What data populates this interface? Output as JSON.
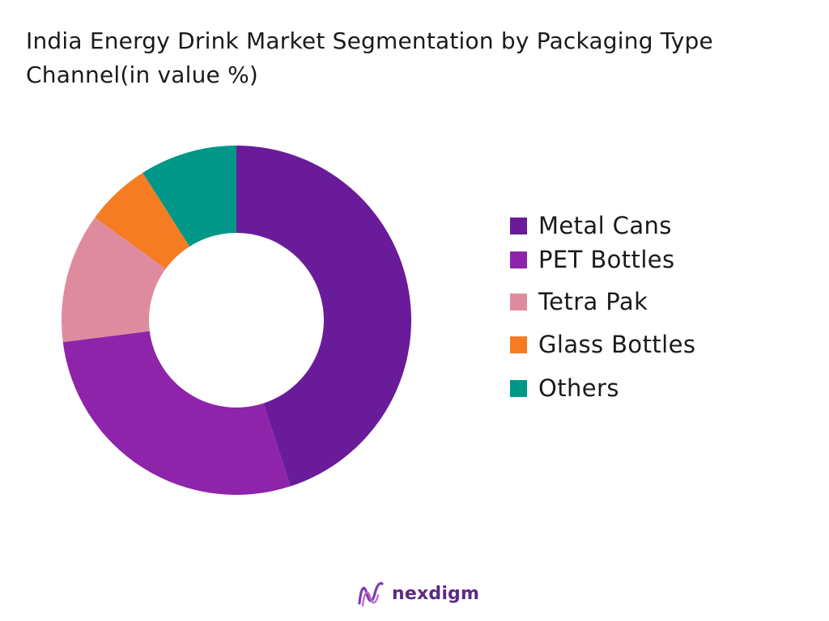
{
  "title_lines": [
    "India Energy Drink Market Segmentation by Packaging Type",
    "Channel(in value %)"
  ],
  "chart_data": {
    "type": "pie",
    "title": "India Energy Drink Market Segmentation by Packaging Type Channel(in value %)",
    "donut": true,
    "categories": [
      "Metal Cans",
      "PET Bottles",
      "Tetra Pak",
      "Glass Bottles",
      "Others"
    ],
    "values": [
      45,
      28,
      12,
      6,
      9
    ],
    "colors": [
      "#6a1b9a",
      "#8e24aa",
      "#de8ba0",
      "#f57c22",
      "#009688"
    ],
    "legend_position": "right"
  },
  "brand": {
    "name": "nexdigm",
    "logo_icon": "nexdigm-logo-icon"
  }
}
